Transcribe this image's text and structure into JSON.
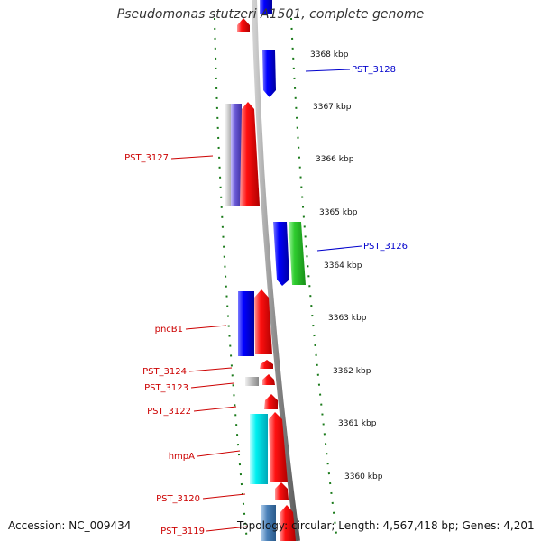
{
  "title": "Pseudomonas stutzeri A1501, complete genome",
  "footer": {
    "accession": "Accession: NC_009434",
    "topology": "Topology: circular; Length: 4,567,418 bp; Genes: 4,201"
  },
  "kbp_ticks": [
    {
      "label": "3368 kbp",
      "kbp": 3368
    },
    {
      "label": "3367 kbp",
      "kbp": 3367
    },
    {
      "label": "3366 kbp",
      "kbp": 3366
    },
    {
      "label": "3365 kbp",
      "kbp": 3365
    },
    {
      "label": "3364 kbp",
      "kbp": 3364
    },
    {
      "label": "3363 kbp",
      "kbp": 3363
    },
    {
      "label": "3362 kbp",
      "kbp": 3362
    },
    {
      "label": "3361 kbp",
      "kbp": 3361
    },
    {
      "label": "3360 kbp",
      "kbp": 3360
    }
  ],
  "gene_labels": [
    {
      "name": "PST_3128",
      "side": "right",
      "color": "#0000cc"
    },
    {
      "name": "PST_3127",
      "side": "left",
      "color": "#cc0000"
    },
    {
      "name": "PST_3126",
      "side": "right",
      "color": "#0000cc"
    },
    {
      "name": "pncB1",
      "side": "left",
      "color": "#cc0000"
    },
    {
      "name": "PST_3124",
      "side": "left",
      "color": "#cc0000"
    },
    {
      "name": "PST_3123",
      "side": "left",
      "color": "#cc0000"
    },
    {
      "name": "PST_3122",
      "side": "left",
      "color": "#cc0000"
    },
    {
      "name": "hmpA",
      "side": "left",
      "color": "#cc0000"
    },
    {
      "name": "PST_3120",
      "side": "left",
      "color": "#cc0000"
    },
    {
      "name": "PST_3119",
      "side": "left",
      "color": "#cc0000"
    }
  ]
}
